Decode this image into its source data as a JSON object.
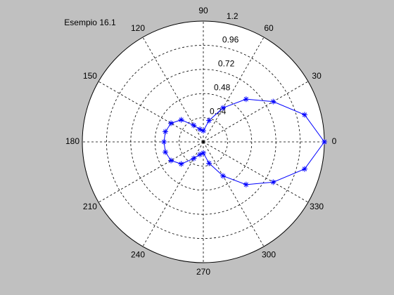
{
  "chart_data": {
    "type": "polar",
    "title": "Esempio 16.1",
    "theta": [
      0,
      15,
      30,
      45,
      60,
      75,
      90,
      105,
      120,
      135,
      150,
      165,
      180,
      195,
      210,
      225,
      240,
      255,
      270,
      285,
      300,
      315,
      330,
      345,
      360
    ],
    "values": [
      1.2,
      1.04,
      0.8,
      0.6,
      0.39,
      0.22,
      0.11,
      0.13,
      0.19,
      0.31,
      0.37,
      0.39,
      0.39,
      0.39,
      0.37,
      0.31,
      0.19,
      0.13,
      0.11,
      0.22,
      0.39,
      0.6,
      0.8,
      1.04,
      1.2
    ],
    "color": "#0000ff",
    "rlim": [
      0,
      1.2
    ],
    "rticks": [
      0.24,
      0.48,
      0.72,
      0.96,
      1.2
    ],
    "thetaticks": [
      0,
      30,
      60,
      90,
      120,
      150,
      180,
      210,
      240,
      270,
      300,
      330
    ]
  }
}
